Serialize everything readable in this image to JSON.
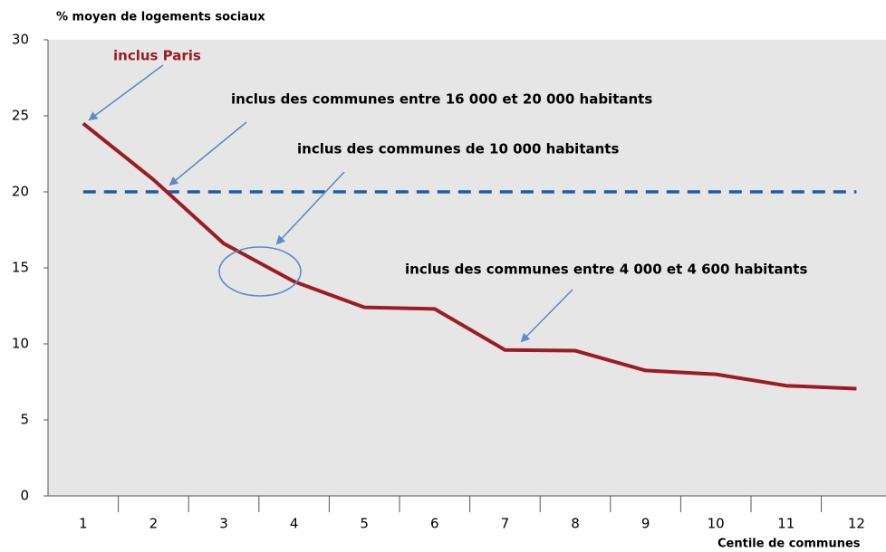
{
  "chart_data": {
    "type": "line",
    "y_label": "% moyen de logements sociaux",
    "x_label": "Centile de communes",
    "categories": [
      "1",
      "2",
      "3",
      "4",
      "5",
      "6",
      "7",
      "8",
      "9",
      "10",
      "11",
      "12"
    ],
    "series": [
      {
        "color": "#9b1c24",
        "values": [
          24.5,
          20.8,
          16.6,
          14.1,
          12.4,
          12.3,
          9.6,
          9.55,
          8.25,
          8.0,
          7.25,
          7.05
        ]
      }
    ],
    "reference_line": {
      "value": 20,
      "color": "#1f5aa6"
    },
    "annotations": [
      "inclus Paris",
      "inclus des communes entre 16 000 et 20 000 habitants",
      "inclus des communes de 10 000 habitants",
      "inclus des communes entre 4 000 et 4 600 habitants"
    ],
    "ylim": [
      0,
      30
    ],
    "yticks": [
      0,
      5,
      10,
      15,
      20,
      25,
      30
    ]
  }
}
